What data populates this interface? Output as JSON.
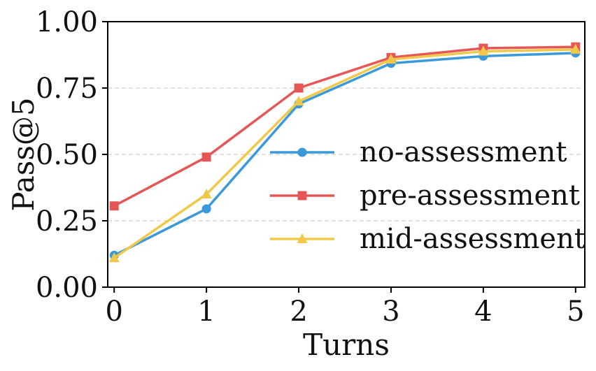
{
  "chart_data": {
    "type": "line",
    "title": "",
    "xlabel": "Turns",
    "ylabel": "Pass@5",
    "x": [
      0,
      1,
      2,
      3,
      4,
      5
    ],
    "xlim": [
      -0.07,
      5.1
    ],
    "ylim": [
      0.0,
      1.0
    ],
    "xticks": [
      "0",
      "1",
      "2",
      "3",
      "4",
      "5"
    ],
    "yticks": [
      "0.00",
      "0.25",
      "0.50",
      "0.75",
      "1.00"
    ],
    "grid": "horizontal dashed",
    "legend_position": "center-right",
    "series": [
      {
        "name": "no-assessment",
        "marker": "circle",
        "color": "#3a9ad9",
        "values": [
          0.12,
          0.295,
          0.69,
          0.843,
          0.87,
          0.882
        ]
      },
      {
        "name": "pre-assessment",
        "marker": "square",
        "color": "#e55757",
        "values": [
          0.306,
          0.49,
          0.75,
          0.865,
          0.9,
          0.905
        ]
      },
      {
        "name": "mid-assessment",
        "marker": "triangle",
        "color": "#f2c84b",
        "values": [
          0.11,
          0.35,
          0.7,
          0.858,
          0.888,
          0.895
        ]
      }
    ]
  }
}
